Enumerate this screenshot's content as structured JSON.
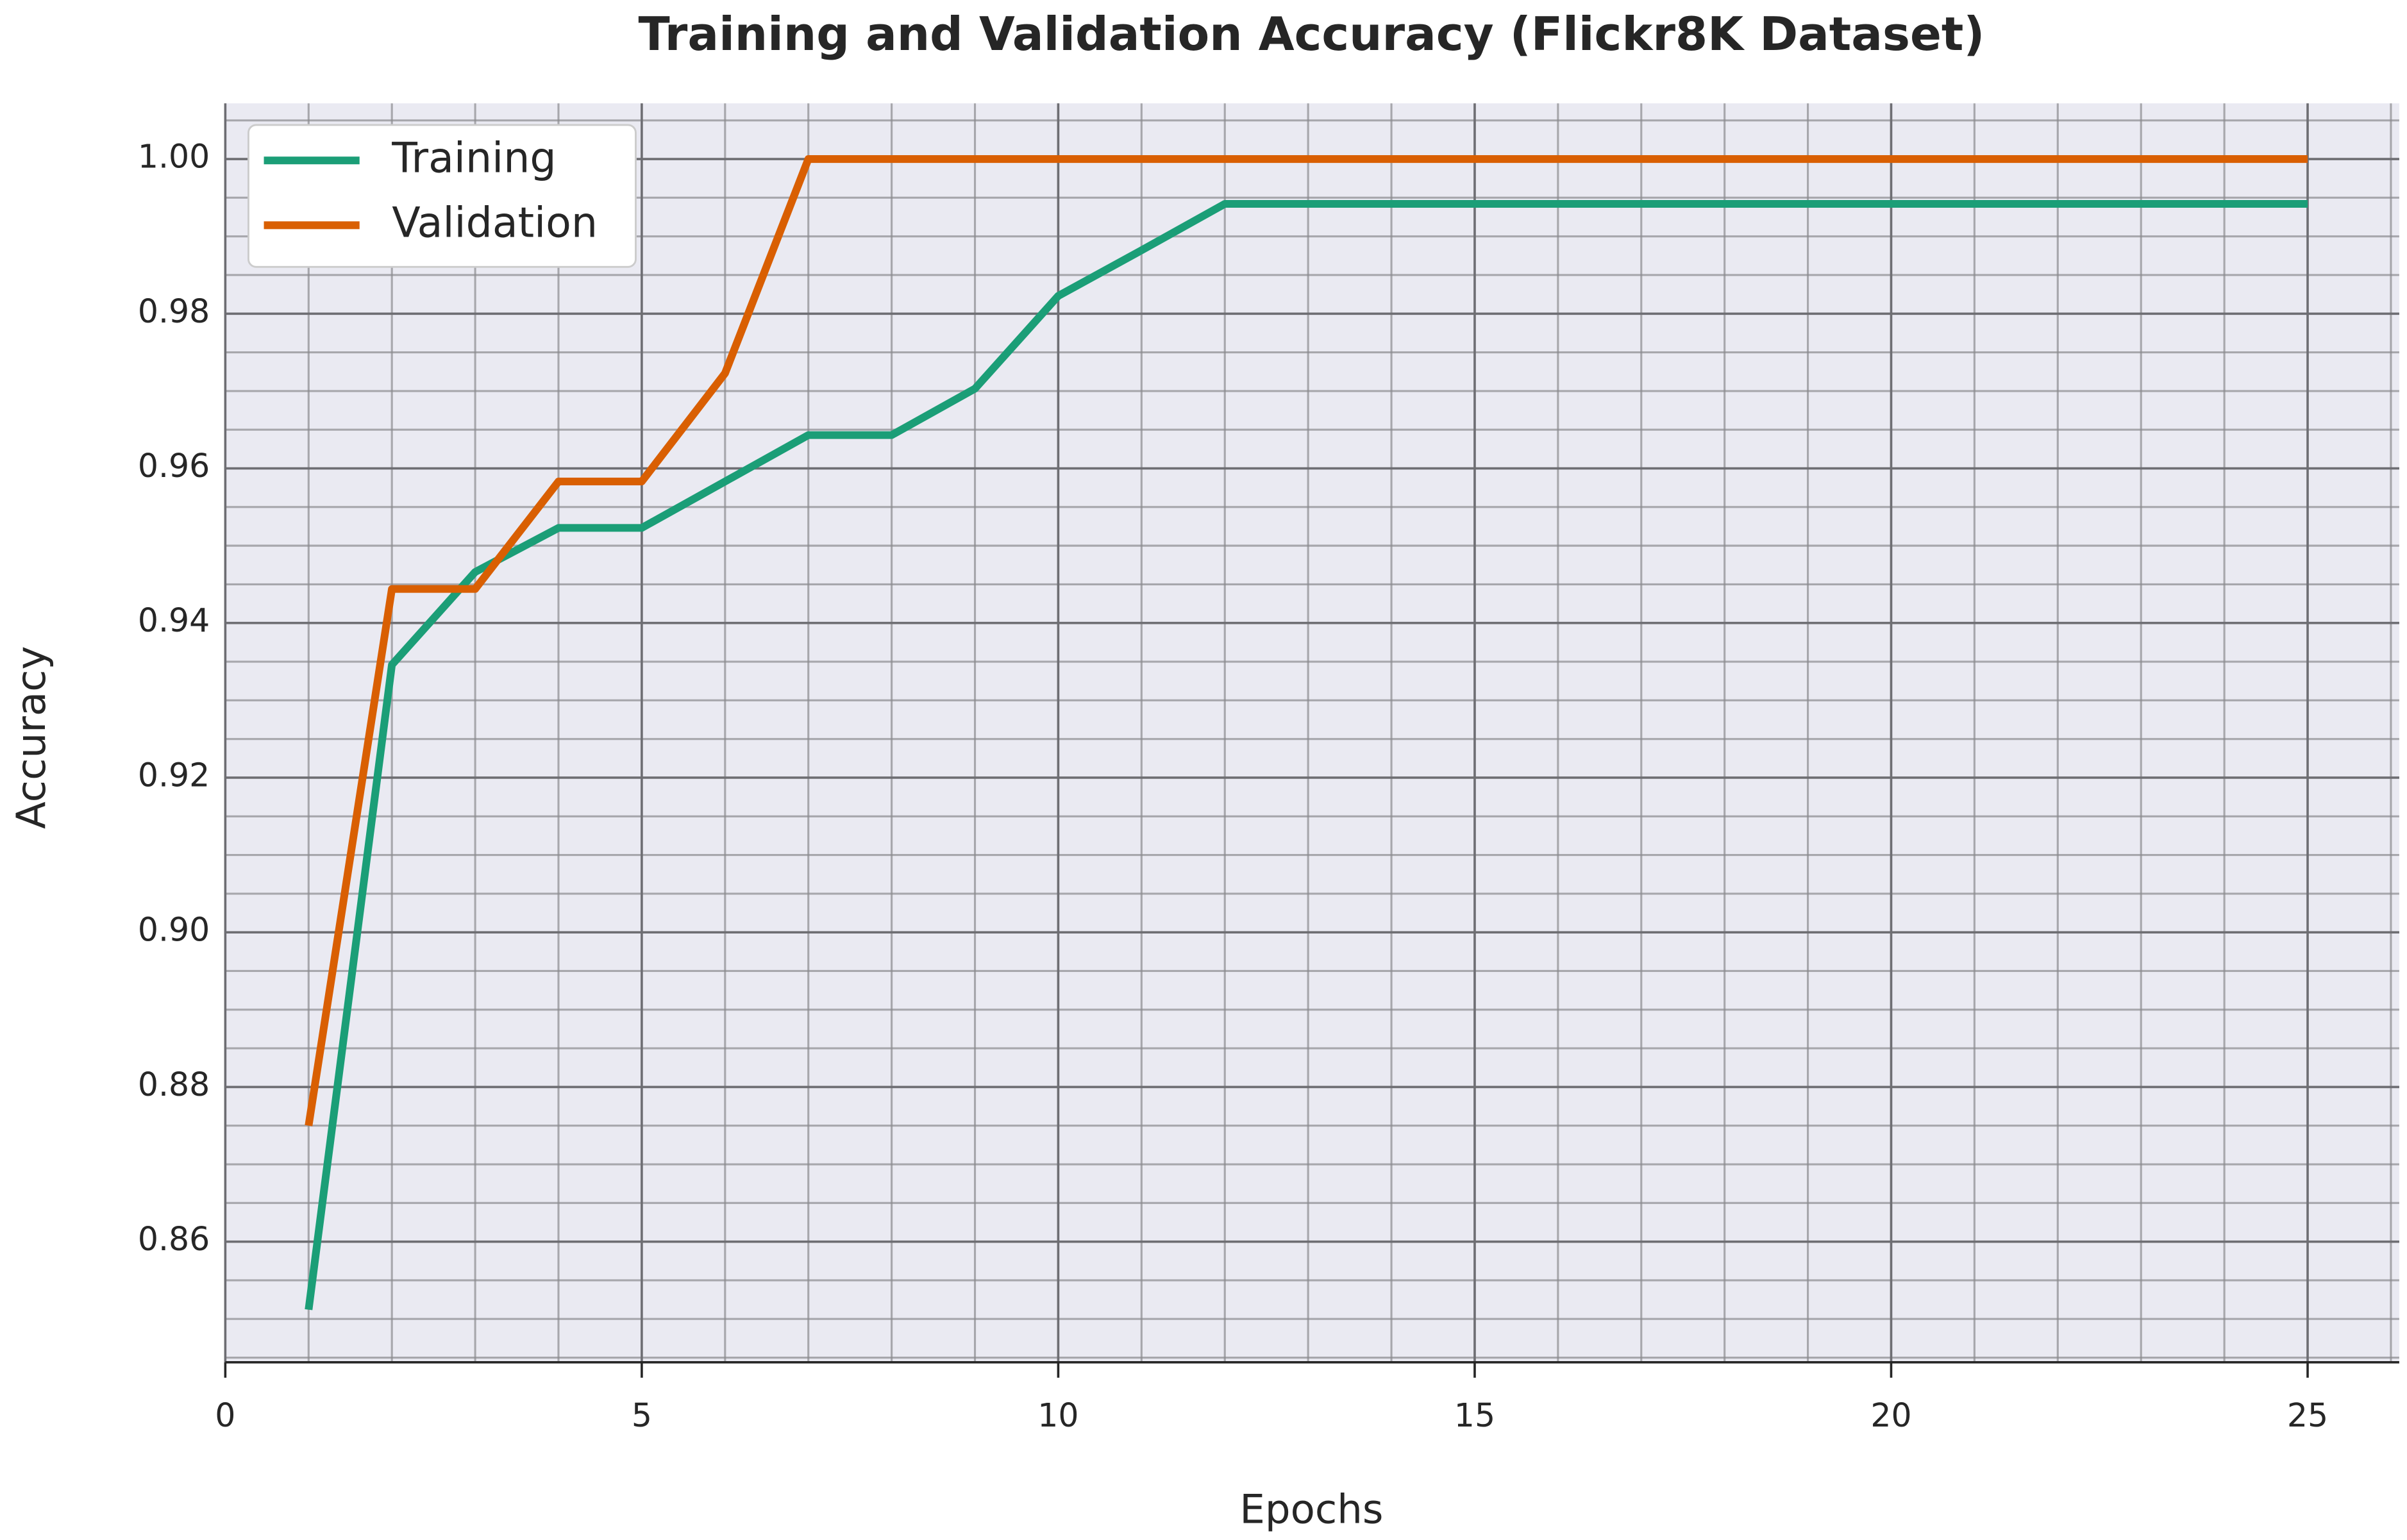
{
  "chart_data": {
    "type": "line",
    "title": "Training and Validation Accuracy (Flickr8K Dataset)",
    "x_label": "Epochs",
    "y_label": "Accuracy",
    "x": [
      1,
      2,
      3,
      4,
      5,
      6,
      7,
      8,
      9,
      10,
      11,
      12,
      13,
      14,
      15,
      16,
      17,
      18,
      19,
      20,
      21,
      22,
      23,
      24,
      25
    ],
    "series": [
      {
        "name": "Training",
        "color": "#1b9e77",
        "values": [
          0.8512,
          0.9346,
          0.9466,
          0.9523,
          0.9523,
          0.9583,
          0.9643,
          0.9643,
          0.9703,
          0.9823,
          0.9882,
          0.9942,
          0.9942,
          0.9942,
          0.9942,
          0.9942,
          0.9942,
          0.9942,
          0.9942,
          0.9942,
          0.9942,
          0.9942,
          0.9942,
          0.9942,
          0.9942
        ]
      },
      {
        "name": "Validation",
        "color": "#d95f02",
        "values": [
          0.875,
          0.9444,
          0.9444,
          0.9583,
          0.9583,
          0.9723,
          1.0,
          1.0,
          1.0,
          1.0,
          1.0,
          1.0,
          1.0,
          1.0,
          1.0,
          1.0,
          1.0,
          1.0,
          1.0,
          1.0,
          1.0,
          1.0,
          1.0,
          1.0,
          1.0
        ]
      }
    ],
    "xlim": [
      0,
      26.1
    ],
    "ylim": [
      0.8444,
      1.0072
    ],
    "xticks": [
      0,
      5,
      10,
      15,
      20,
      25
    ],
    "yticks": [
      0.86,
      0.88,
      {
        "value": 0.9,
        "label": "0.90"
      },
      0.92,
      0.94,
      0.96,
      0.98,
      {
        "value": 1,
        "label": "1.00"
      }
    ],
    "grid": true,
    "minor_grid": {
      "x": 1,
      "y": 0.005
    },
    "legend": "upper left"
  }
}
